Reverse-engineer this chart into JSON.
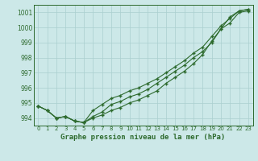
{
  "title": "Graphe pression niveau de la mer (hPa)",
  "x_hours": [
    0,
    1,
    2,
    3,
    4,
    5,
    6,
    7,
    8,
    9,
    10,
    11,
    12,
    13,
    14,
    15,
    16,
    17,
    18,
    19,
    20,
    21,
    22,
    23
  ],
  "line1": [
    994.8,
    994.5,
    994.0,
    994.1,
    993.8,
    993.7,
    994.1,
    994.4,
    994.9,
    995.1,
    995.4,
    995.6,
    995.9,
    996.3,
    996.7,
    997.1,
    997.5,
    998.0,
    998.4,
    999.0,
    999.9,
    1000.3,
    1001.0,
    1001.1
  ],
  "line2": [
    994.8,
    994.5,
    994.0,
    994.1,
    993.8,
    993.7,
    994.5,
    994.9,
    995.3,
    995.5,
    995.8,
    996.0,
    996.3,
    996.6,
    997.0,
    997.4,
    997.8,
    998.3,
    998.7,
    999.4,
    1000.1,
    1000.6,
    1001.1,
    1001.2
  ],
  "line3": [
    994.8,
    994.5,
    994.0,
    994.1,
    993.8,
    993.7,
    994.0,
    994.2,
    994.5,
    994.7,
    995.0,
    995.2,
    995.5,
    995.8,
    996.3,
    996.7,
    997.1,
    997.6,
    998.2,
    999.1,
    999.9,
    1000.7,
    1001.1,
    1001.2
  ],
  "line_color": "#2d6a2d",
  "bg_color": "#cce8e8",
  "grid_color": "#aacfcf",
  "ylim": [
    993.5,
    1001.5
  ],
  "yticks": [
    994,
    995,
    996,
    997,
    998,
    999,
    1000,
    1001
  ],
  "xticks": [
    0,
    1,
    2,
    3,
    4,
    5,
    6,
    7,
    8,
    9,
    10,
    11,
    12,
    13,
    14,
    15,
    16,
    17,
    18,
    19,
    20,
    21,
    22,
    23
  ],
  "title_color": "#2d6a2d",
  "title_fontsize": 6.5,
  "tick_fontsize": 5.0,
  "ytick_fontsize": 5.5
}
